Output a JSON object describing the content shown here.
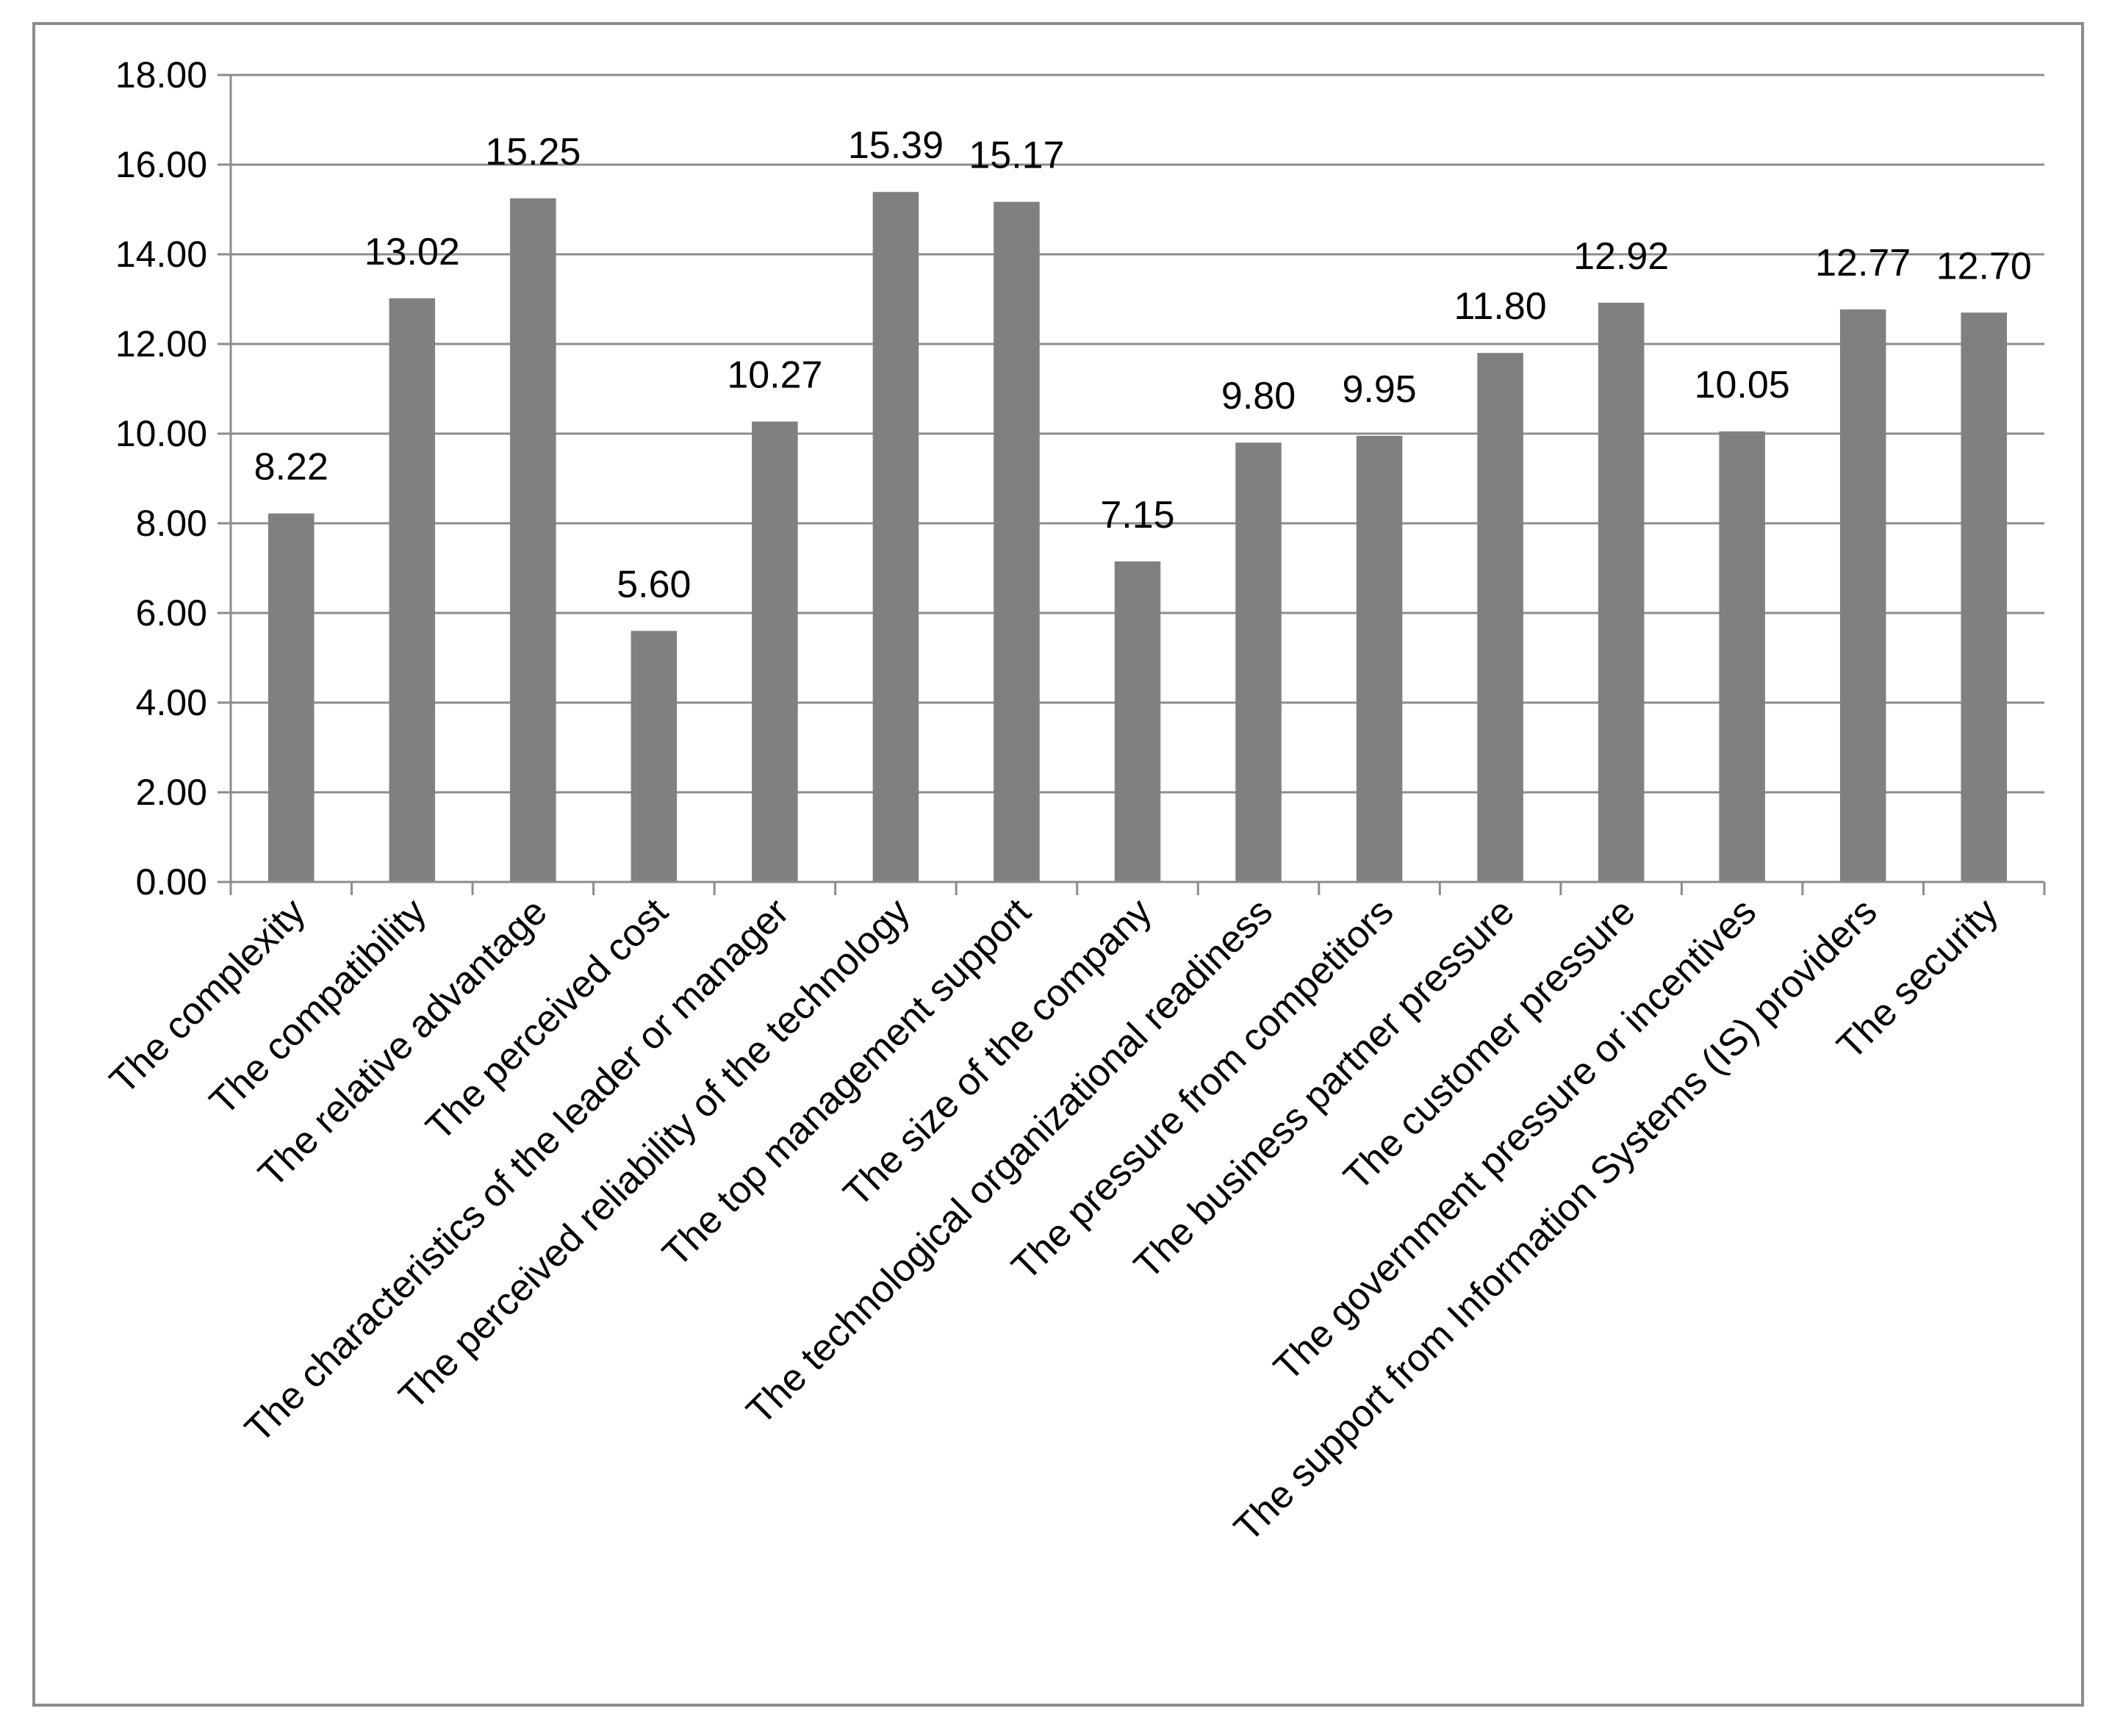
{
  "chart_data": {
    "type": "bar",
    "categories": [
      "The complexity",
      "The compatibility",
      "The relative advantage",
      "The perceived cost",
      "The characteristics of the leader or manager",
      "The perceived reliability of the technology",
      "The top management support",
      "The size of the company",
      "The technological organizational readiness",
      "The pressure from competitors",
      "The business partner pressure",
      "The customer pressure",
      "The government pressure or incentives",
      "The support from Information Systems (IS) providers",
      "The security"
    ],
    "values": [
      8.22,
      13.02,
      15.25,
      5.6,
      10.27,
      15.39,
      15.17,
      7.15,
      9.8,
      9.95,
      11.8,
      12.92,
      10.05,
      12.77,
      12.7
    ],
    "value_labels": [
      "8.22",
      "13.02",
      "15.25",
      "5.60",
      "10.27",
      "15.39",
      "15.17",
      "7.15",
      "9.80",
      "9.95",
      "11.80",
      "12.92",
      "10.05",
      "12.77",
      "12.70"
    ],
    "y_ticks": [
      "0.00",
      "2.00",
      "4.00",
      "6.00",
      "8.00",
      "10.00",
      "12.00",
      "14.00",
      "16.00",
      "18.00"
    ],
    "ylim": [
      0,
      18
    ],
    "grid": true,
    "legend": "none",
    "bar_color": "#808080",
    "grid_color": "#8c8c8c",
    "axis_color": "#8c8c8c"
  }
}
